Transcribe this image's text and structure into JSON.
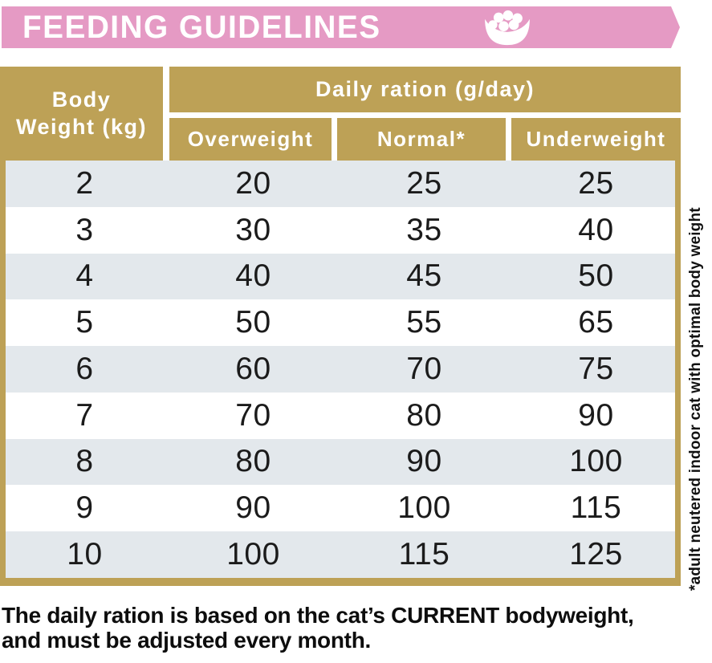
{
  "banner": {
    "title": "FEEDING GUIDELINES",
    "icon": "kibble-bowl-icon",
    "bg_color": "#e59ac4"
  },
  "table": {
    "corner": {
      "line1": "Body",
      "line2": "Weight (kg)"
    },
    "group_header": "Daily ration (g/day)",
    "sub_headers": [
      "Overweight",
      "Normal*",
      "Underweight"
    ],
    "header_bg": "#bda156",
    "alt_row_bg": "#e3e8ec",
    "rows": [
      [
        "2",
        "20",
        "25",
        "25"
      ],
      [
        "3",
        "30",
        "35",
        "40"
      ],
      [
        "4",
        "40",
        "45",
        "50"
      ],
      [
        "5",
        "50",
        "55",
        "65"
      ],
      [
        "6",
        "60",
        "70",
        "75"
      ],
      [
        "7",
        "70",
        "80",
        "90"
      ],
      [
        "8",
        "80",
        "90",
        "100"
      ],
      [
        "9",
        "90",
        "100",
        "115"
      ],
      [
        "10",
        "100",
        "115",
        "125"
      ]
    ]
  },
  "side_note": "*adult neutered indoor cat with optimal body weight",
  "footer": {
    "line1": "The daily ration is based on the cat’s CURRENT bodyweight,",
    "line2": "and must be adjusted every month."
  }
}
